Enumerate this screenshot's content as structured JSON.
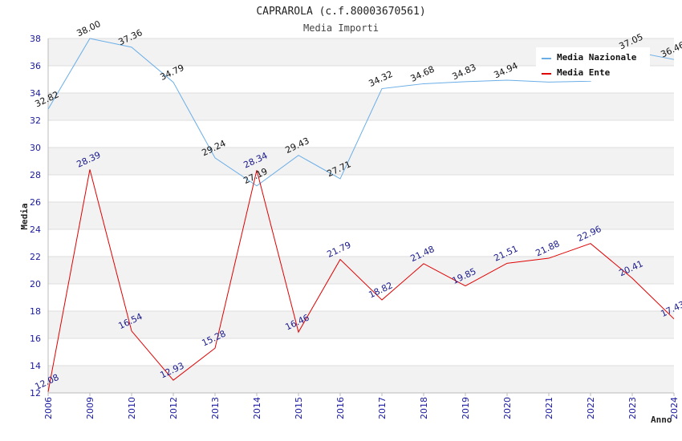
{
  "chart_data": {
    "type": "line",
    "title": "CAPRAROLA (c.f.80003670561)",
    "subtitle": "Media Importi",
    "xlabel": "Anno",
    "ylabel": "Media",
    "ylim": [
      12,
      38
    ],
    "yticks": [
      12,
      14,
      16,
      18,
      20,
      22,
      24,
      26,
      28,
      30,
      32,
      34,
      36,
      38
    ],
    "categories": [
      "2006",
      "2009",
      "2010",
      "2012",
      "2013",
      "2014",
      "2015",
      "2016",
      "2017",
      "2018",
      "2019",
      "2020",
      "2021",
      "2022",
      "2023",
      "2024"
    ],
    "legend_position": "top-right",
    "series": [
      {
        "name": "Media Nazionale",
        "color": "#6aaee8",
        "values": [
          32.82,
          38.0,
          37.36,
          34.79,
          29.24,
          27.19,
          29.43,
          27.71,
          34.32,
          34.68,
          34.83,
          34.94,
          34.8,
          34.87,
          37.05,
          36.46
        ],
        "labels": [
          "32.82",
          "38.00",
          "37.36",
          "34.79",
          "29.24",
          "27.19",
          "29.43",
          "27.71",
          "34.32",
          "34.68",
          "34.83",
          "34.94",
          "",
          "",
          "37.05",
          "36.46"
        ]
      },
      {
        "name": "Media Ente",
        "color": "#e00000",
        "values": [
          12.08,
          28.39,
          16.54,
          12.93,
          15.28,
          28.34,
          16.46,
          21.79,
          18.82,
          21.48,
          19.85,
          21.51,
          21.88,
          22.96,
          20.41,
          17.43
        ],
        "labels": [
          "12.08",
          "28.39",
          "16.54",
          "12.93",
          "15.28",
          "28.34",
          "16.46",
          "21.79",
          "18.82",
          "21.48",
          "19.85",
          "21.51",
          "21.88",
          "22.96",
          "20.41",
          "17.43"
        ]
      }
    ]
  }
}
